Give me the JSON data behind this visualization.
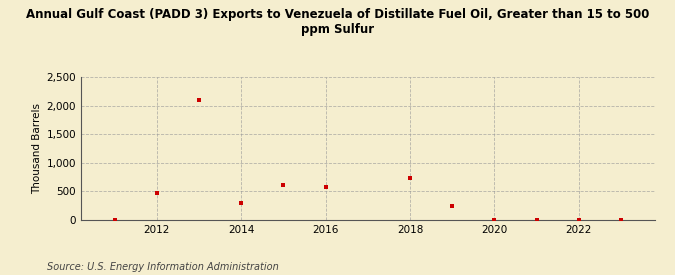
{
  "title": "Annual Gulf Coast (PADD 3) Exports to Venezuela of Distillate Fuel Oil, Greater than 15 to 500\nppm Sulfur",
  "ylabel": "Thousand Barrels",
  "source": "Source: U.S. Energy Information Administration",
  "background_color": "#f5eecf",
  "plot_bg_color": "#f5eecf",
  "marker_color": "#cc0000",
  "grid_color": "#999999",
  "years": [
    2011,
    2012,
    2013,
    2014,
    2015,
    2016,
    2018,
    2019,
    2020,
    2021,
    2022,
    2023
  ],
  "values": [
    0,
    470,
    2100,
    300,
    610,
    585,
    730,
    250,
    4,
    4,
    4,
    4
  ],
  "ylim": [
    0,
    2500
  ],
  "yticks": [
    0,
    500,
    1000,
    1500,
    2000,
    2500
  ],
  "xlim": [
    2010.2,
    2023.8
  ],
  "xticks": [
    2012,
    2014,
    2016,
    2018,
    2020,
    2022
  ]
}
